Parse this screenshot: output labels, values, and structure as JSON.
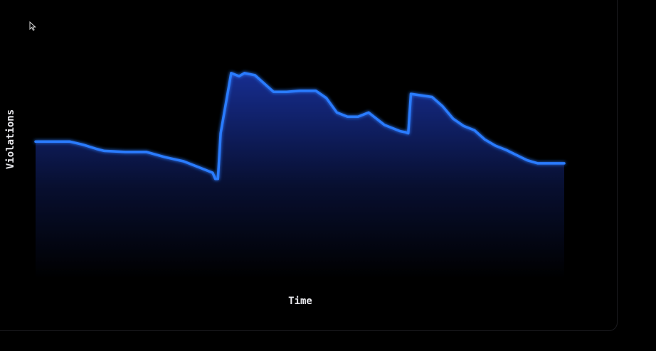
{
  "colors": {
    "background": "#000000",
    "line": "#2b7bff",
    "fill_top": "#1e3cc0",
    "axis": "#3a3a44",
    "text": "#e8e8ec"
  },
  "icons": {
    "cursor": "cursor-arrow-icon"
  },
  "chart_data": {
    "type": "area",
    "title": "",
    "xlabel": "Time",
    "ylabel": "Violations",
    "grid": false,
    "legend": "none",
    "xlim": [
      0,
      100
    ],
    "ylim": [
      0,
      100
    ],
    "series": [
      {
        "name": "",
        "x": [
          0,
          3,
          6.5,
          9,
          11.5,
          13,
          17,
          21,
          24.5,
          28,
          31,
          33.5,
          34,
          34.5,
          35,
          37,
          38.5,
          39.5,
          41.5,
          45,
          47.5,
          50,
          53,
          55,
          57,
          59,
          61,
          63,
          66,
          69,
          70,
          70.5,
          71,
          75,
          77,
          79,
          81,
          83,
          85,
          87,
          89,
          91,
          93,
          95,
          97,
          100
        ],
        "y": [
          66,
          66,
          66,
          64.5,
          62.5,
          61.5,
          61,
          61,
          58.5,
          56.5,
          53.5,
          51,
          48,
          48,
          70,
          99,
          97.5,
          99,
          98,
          90,
          90,
          90.5,
          90.5,
          87,
          80,
          78,
          78,
          80,
          74,
          71,
          70.5,
          70,
          89,
          87.5,
          83,
          77,
          73.5,
          71.5,
          67,
          64,
          62,
          59.5,
          57,
          55.5,
          55.5,
          55.5
        ]
      }
    ]
  }
}
